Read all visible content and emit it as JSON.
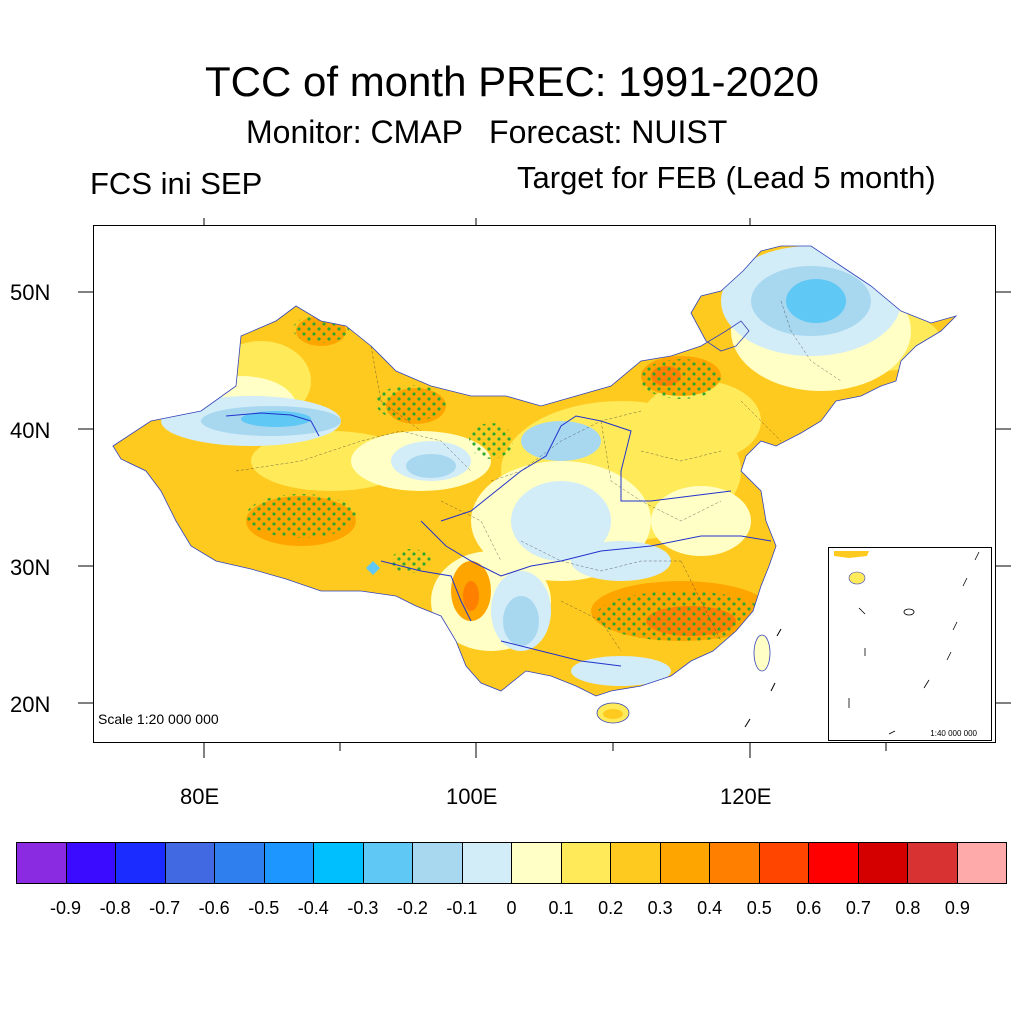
{
  "title": "TCC of month PREC: 1991-2020",
  "subtitle": "Monitor: CMAP   Forecast: NUIST",
  "left_label": "FCS ini SEP",
  "right_label": "Target for FEB (Lead 5 month)",
  "lat_labels": [
    "50N",
    "40N",
    "30N",
    "20N"
  ],
  "lon_labels": [
    "80E",
    "100E",
    "120E"
  ],
  "scale_main": "Scale 1:20 000 000",
  "scale_inset": "1:40 000 000",
  "colorbar": {
    "colors": [
      "#8a2be2",
      "#3a0bff",
      "#1a2cff",
      "#4169e1",
      "#2f7fef",
      "#1e96ff",
      "#00bfff",
      "#5fc8f5",
      "#a8d8f0",
      "#d2ecf8",
      "#ffffc6",
      "#ffea5a",
      "#ffca20",
      "#ffa500",
      "#ff7f00",
      "#ff4500",
      "#ff0000",
      "#d40000",
      "#d83232",
      "#ffaaaa"
    ],
    "labels": [
      "-0.9",
      "-0.8",
      "-0.7",
      "-0.6",
      "-0.5",
      "-0.4",
      "-0.3",
      "-0.2",
      "-0.1",
      "0",
      "0.1",
      "0.2",
      "0.3",
      "0.4",
      "0.5",
      "0.6",
      "0.7",
      "0.8",
      "0.9"
    ]
  },
  "map_colors": {
    "base": "#ffca20",
    "light_yellow": "#ffea5a",
    "pale": "#ffffc6",
    "light_blue": "#d2ecf8",
    "mid_blue": "#a8d8f0",
    "blue": "#5fc8f5",
    "orange": "#ffa500",
    "dark_orange": "#ff7f00",
    "stipple": "#2fa82f",
    "river": "#2233cc"
  }
}
